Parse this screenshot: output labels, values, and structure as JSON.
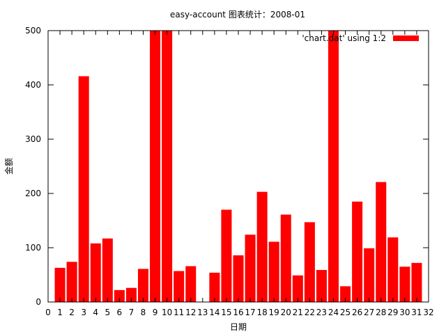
{
  "chart_data": {
    "type": "bar",
    "title": "easy-account 图表统计：2008-01",
    "xlabel": "日期",
    "ylabel": "金额",
    "legend": {
      "label": "'chart.dat' using 1:2",
      "position": "top-right"
    },
    "xlim": [
      0,
      32
    ],
    "ylim": [
      0,
      500
    ],
    "x_ticks": [
      0,
      1,
      2,
      3,
      4,
      5,
      6,
      7,
      8,
      9,
      10,
      11,
      12,
      13,
      14,
      15,
      16,
      17,
      18,
      19,
      20,
      21,
      22,
      23,
      24,
      25,
      26,
      27,
      28,
      29,
      30,
      31,
      32
    ],
    "y_ticks": [
      0,
      100,
      200,
      300,
      400,
      500
    ],
    "x": [
      1,
      2,
      3,
      4,
      5,
      6,
      7,
      8,
      9,
      10,
      11,
      12,
      14,
      15,
      16,
      17,
      18,
      19,
      20,
      21,
      22,
      23,
      24,
      25,
      26,
      27,
      28,
      29,
      30,
      31
    ],
    "values": [
      63,
      74,
      416,
      108,
      117,
      22,
      26,
      61,
      500,
      500,
      57,
      66,
      54,
      170,
      86,
      124,
      203,
      111,
      161,
      49,
      147,
      59,
      500,
      29,
      185,
      99,
      221,
      119,
      65,
      72
    ],
    "bar_color": "#ff0000",
    "grid": false
  }
}
